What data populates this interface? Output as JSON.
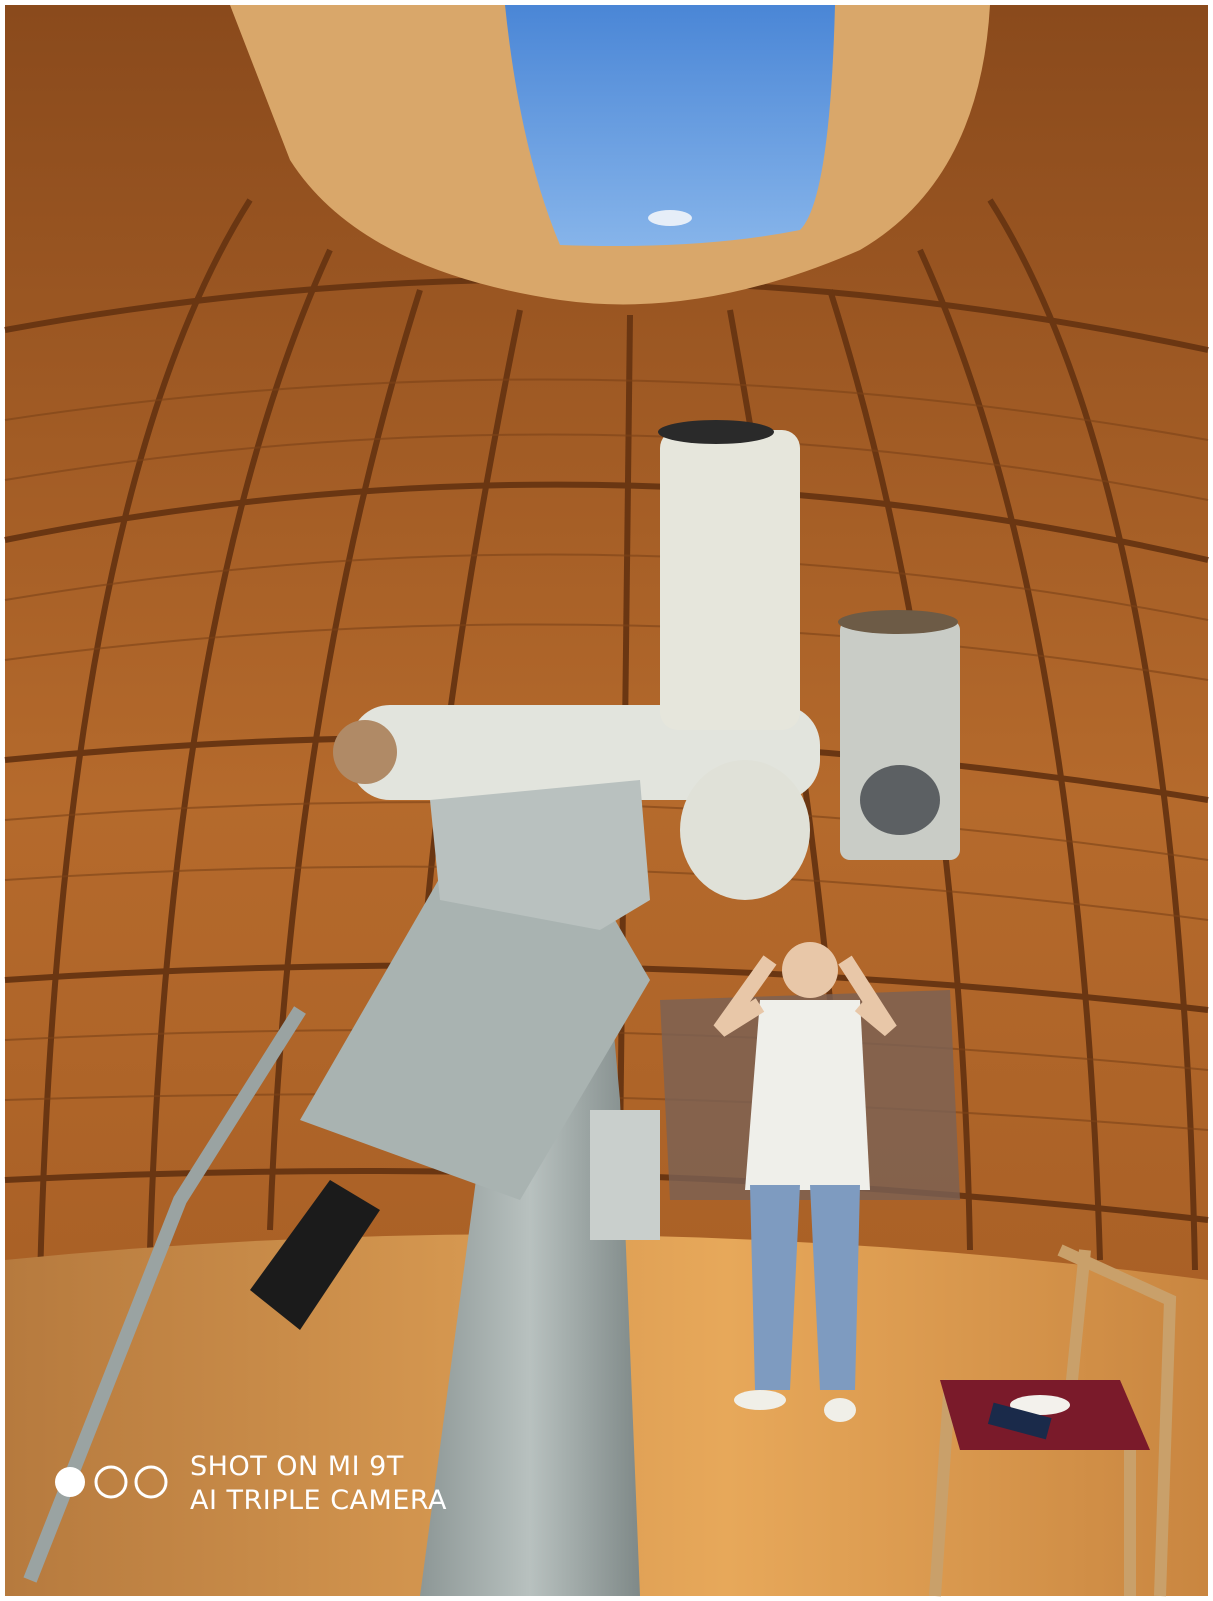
{
  "watermark": {
    "line1": "SHOT ON MI 9T",
    "line2": "AI TRIPLE CAMERA"
  }
}
